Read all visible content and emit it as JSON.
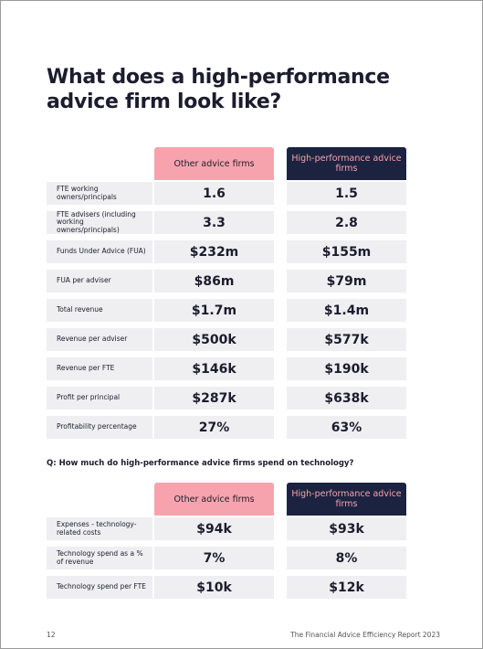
{
  "title": "What does a high-performance advice firm look like?",
  "table1": {
    "headers": [
      "Other advice firms",
      "High-performance advice firms"
    ],
    "rows": [
      [
        "FTE working owners/principals",
        "1.6",
        "1.5"
      ],
      [
        "FTE advisers (including working owners/principals)",
        "3.3",
        "2.8"
      ],
      [
        "Funds Under Advice (FUA)",
        "$232m",
        "$155m"
      ],
      [
        "FUA per adviser",
        "$86m",
        "$79m"
      ],
      [
        "Total revenue",
        "$1.7m",
        "$1.4m"
      ],
      [
        "Revenue per adviser",
        "$500k",
        "$577k"
      ],
      [
        "Revenue per FTE",
        "$146k",
        "$190k"
      ],
      [
        "Profit per principal",
        "$287k",
        "$638k"
      ],
      [
        "Profitability percentage",
        "27%",
        "63%"
      ]
    ]
  },
  "question": "Q: How much do high-performance advice firms spend on technology?",
  "table2": {
    "headers": [
      "Other advice firms",
      "High-performance advice firms"
    ],
    "rows": [
      [
        "Expenses - technology-related costs",
        "$94k",
        "$93k"
      ],
      [
        "Technology spend as a % of revenue",
        "7%",
        "8%"
      ],
      [
        "Technology spend per FTE",
        "$10k",
        "$12k"
      ]
    ]
  },
  "footer": {
    "page": "12",
    "report": "The Financial Advice Efficiency Report 2023"
  }
}
